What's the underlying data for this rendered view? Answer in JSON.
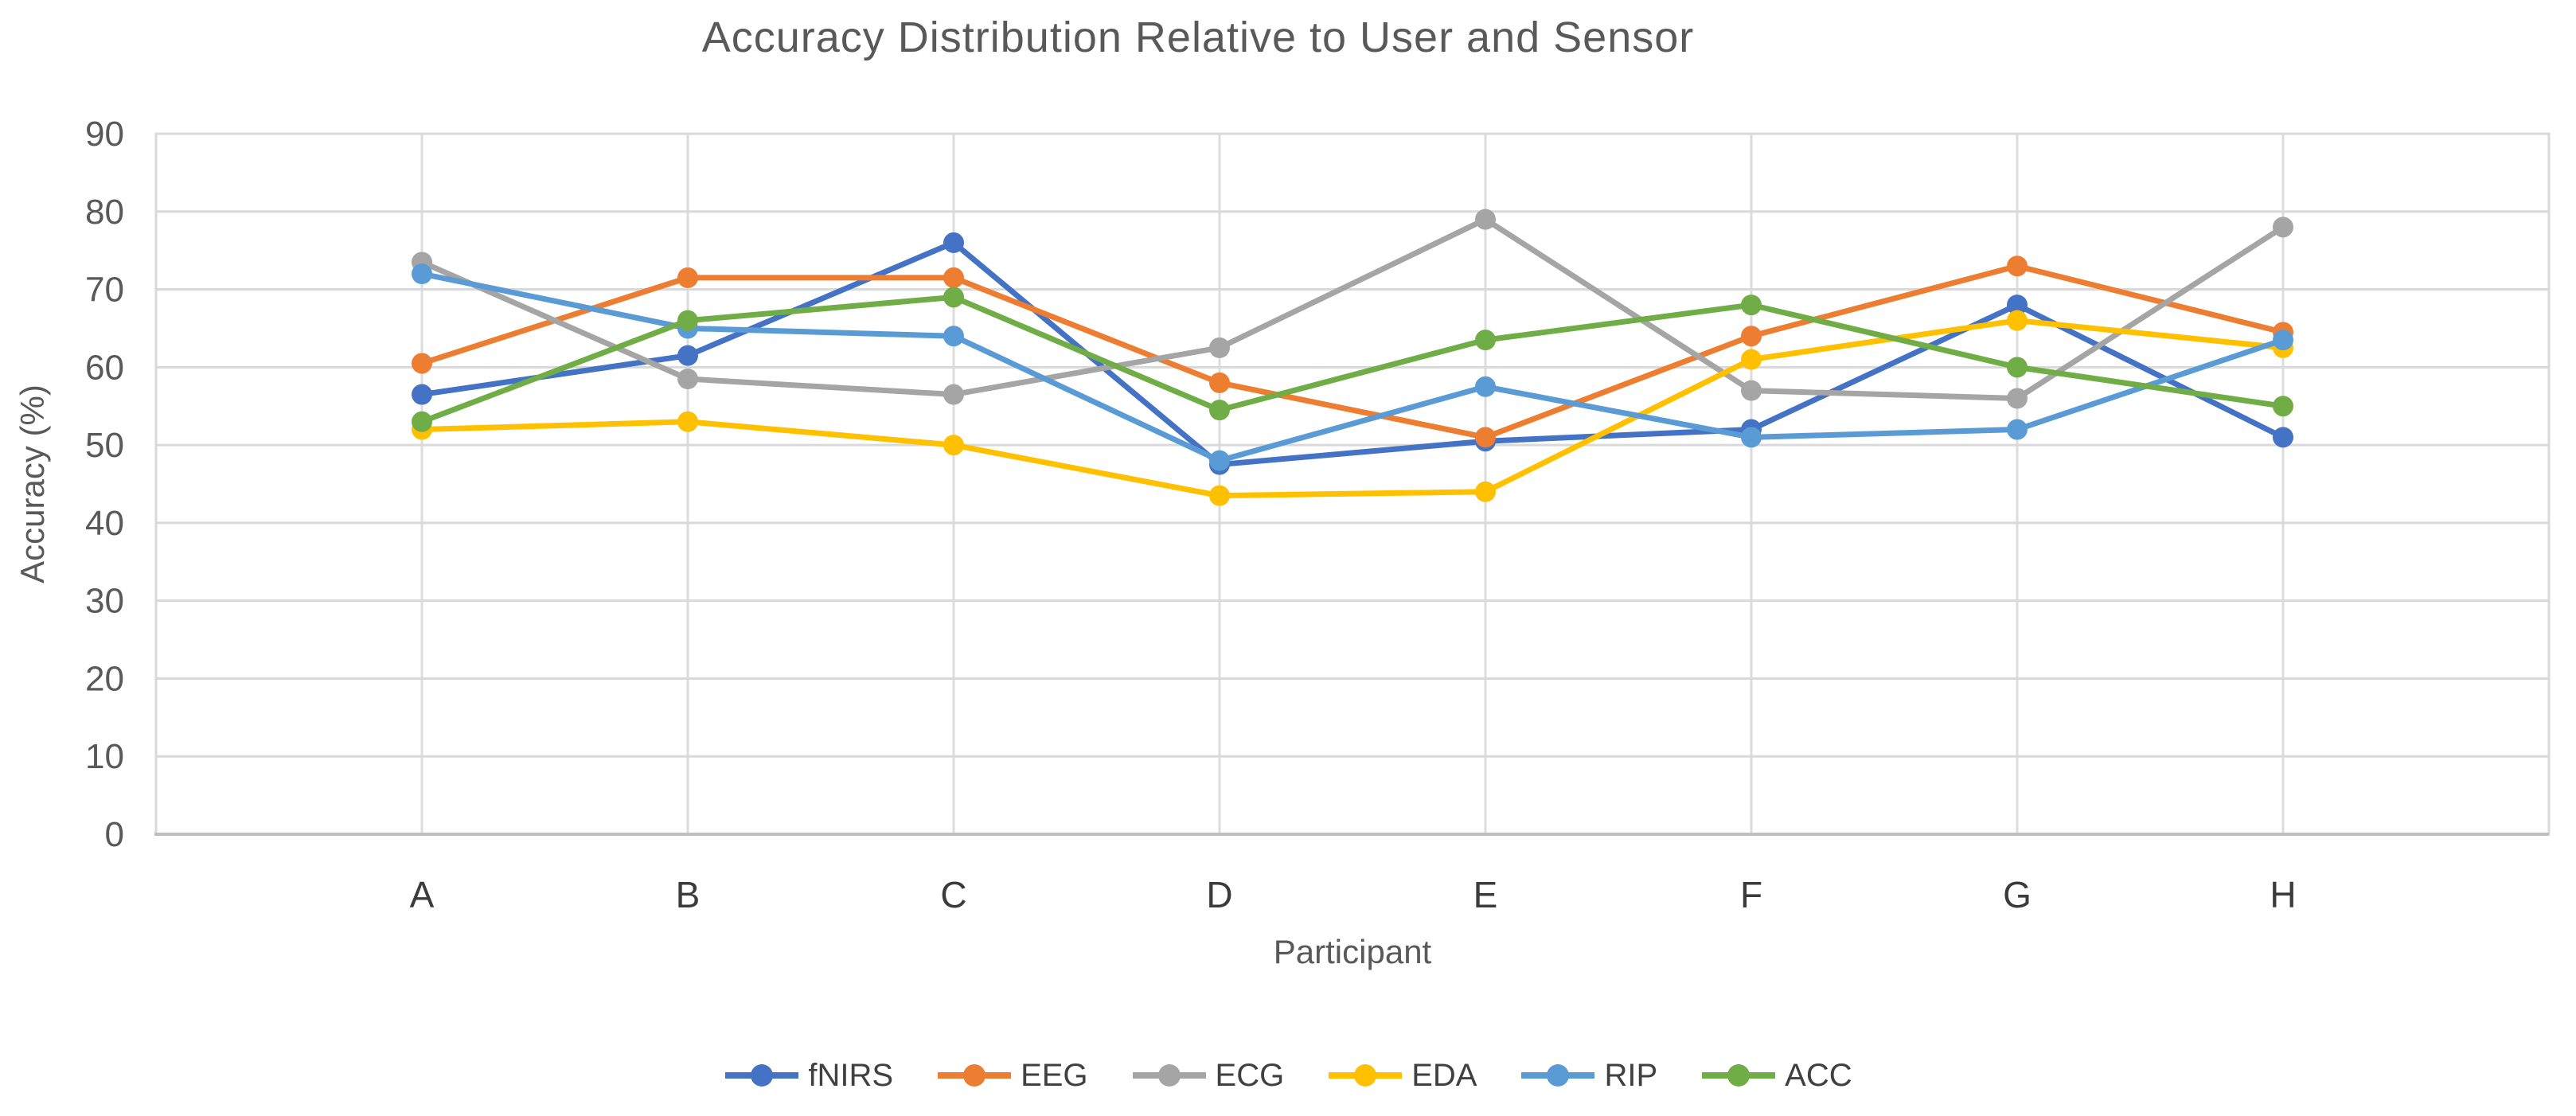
{
  "chart_data": {
    "type": "line",
    "title": "Accuracy Distribution Relative to User and Sensor",
    "xlabel": "Participant",
    "ylabel": "Accuracy (%)",
    "categories": [
      "A",
      "B",
      "C",
      "D",
      "E",
      "F",
      "G",
      "H"
    ],
    "series": [
      {
        "name": "fNIRS",
        "color": "#4472C4",
        "values": [
          56.5,
          61.5,
          76,
          47.5,
          50.5,
          52,
          68,
          51
        ]
      },
      {
        "name": "EEG",
        "color": "#ED7D31",
        "values": [
          60.5,
          71.5,
          71.5,
          58,
          51,
          64,
          73,
          64.5
        ]
      },
      {
        "name": "ECG",
        "color": "#A5A5A5",
        "values": [
          73.5,
          58.5,
          56.5,
          62.5,
          79,
          57,
          56,
          78
        ]
      },
      {
        "name": "EDA",
        "color": "#FFC000",
        "values": [
          52,
          53,
          50,
          43.5,
          44,
          61,
          66,
          62.5
        ]
      },
      {
        "name": "RIP",
        "color": "#5B9BD5",
        "values": [
          72,
          65,
          64,
          48,
          57.5,
          51,
          52,
          63.5
        ]
      },
      {
        "name": "ACC",
        "color": "#70AD47",
        "values": [
          53,
          66,
          69,
          54.5,
          63.5,
          68,
          60,
          55
        ]
      }
    ],
    "ylim": [
      0,
      90
    ],
    "ytick_step": 10,
    "ytick_labels": [
      "0",
      "10",
      "20",
      "30",
      "40",
      "50",
      "60",
      "70",
      "80",
      "90"
    ],
    "grid": true,
    "legend_position": "bottom",
    "marker": "circle"
  },
  "style": {
    "background": "#FFFFFF",
    "grid_color": "#D9D9D9",
    "vgrid_color": "#DCDCDC",
    "border_color": "#D9D9D9",
    "axis_color": "#BFBFBF",
    "title_color": "#595959",
    "tick_label_color": "#595959",
    "category_label_color": "#3B3B3B",
    "legend_text_color": "#404040",
    "line_width": 7,
    "marker_radius": 13
  }
}
